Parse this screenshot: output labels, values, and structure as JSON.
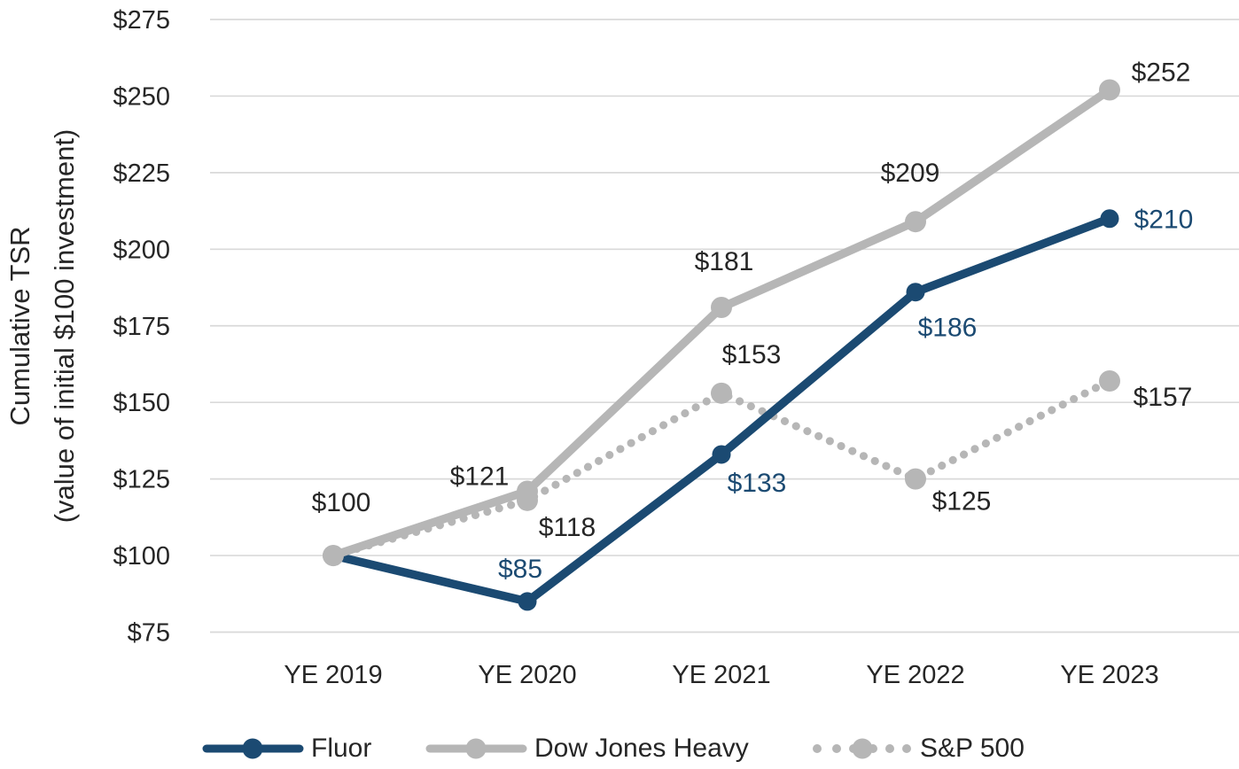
{
  "colors": {
    "navy": "#1b4a72",
    "gray": "#b6b6b6",
    "gridline": "#d9d9d9",
    "text": "#262626",
    "background": "#ffffff"
  },
  "chart_data": {
    "type": "line",
    "title": "",
    "categories": [
      "YE 2019",
      "YE 2020",
      "YE 2021",
      "YE 2022",
      "YE 2023"
    ],
    "series": [
      {
        "name": "Fluor",
        "values": [
          100,
          85,
          133,
          186,
          210
        ],
        "color": "#1b4a72",
        "line_style": "solid",
        "label_color": "#1b4a72"
      },
      {
        "name": "Dow Jones Heavy",
        "values": [
          100,
          121,
          181,
          209,
          252
        ],
        "color": "#b6b6b6",
        "line_style": "solid",
        "label_color": "#262626"
      },
      {
        "name": "S&P 500",
        "values": [
          100,
          118,
          153,
          125,
          157
        ],
        "color": "#b6b6b6",
        "line_style": "dotted",
        "label_color": "#262626"
      }
    ],
    "ylabel_line1": "Cumulative TSR",
    "ylabel_line2": "(value of initial $100 investment)",
    "xlabel": "",
    "ylim": [
      75,
      275
    ],
    "y_tick_step": 25,
    "y_tick_labels": [
      "$75",
      "$100",
      "$125",
      "$150",
      "$175",
      "$200",
      "$225",
      "$250",
      "$275"
    ],
    "value_prefix": "$",
    "grid": true,
    "legend_position": "bottom",
    "data_labels_shown": [
      "$100",
      "$85",
      "$121",
      "$118",
      "$181",
      "$153",
      "$133",
      "$209",
      "$186",
      "$125",
      "$252",
      "$210",
      "$157"
    ]
  }
}
